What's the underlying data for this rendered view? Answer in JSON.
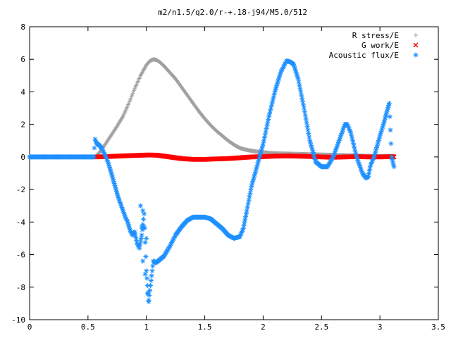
{
  "chart_data": {
    "type": "scatter",
    "title": "m2/n1.5/q2.0/r-+.18-j94/M5.0/512",
    "xlabel": "",
    "ylabel": "",
    "xlim": [
      0,
      3.5
    ],
    "ylim": [
      -10,
      8
    ],
    "x_ticks": [
      "0",
      "0.5",
      "1",
      "1.5",
      "2",
      "2.5",
      "3",
      "3.5"
    ],
    "y_ticks": [
      "-10",
      "-8",
      "-6",
      "-4",
      "-2",
      "0",
      "2",
      "4",
      "6",
      "8"
    ],
    "grid": false,
    "legend_position": "top-right",
    "series": [
      {
        "name": "R stress/E",
        "marker": "+",
        "color": "#a0a0a0",
        "x": [
          0.57,
          0.6,
          0.65,
          0.7,
          0.75,
          0.8,
          0.85,
          0.9,
          0.95,
          1.0,
          1.03,
          1.06,
          1.09,
          1.12,
          1.15,
          1.2,
          1.25,
          1.3,
          1.35,
          1.4,
          1.45,
          1.5,
          1.55,
          1.6,
          1.65,
          1.7,
          1.75,
          1.8,
          1.85,
          1.9,
          1.95,
          2.0,
          2.05,
          2.1,
          2.2,
          2.3,
          2.4,
          2.5,
          2.6,
          2.7,
          2.8,
          2.9,
          3.0,
          3.05,
          3.1,
          3.12
        ],
        "y": [
          0.05,
          0.3,
          0.8,
          1.35,
          1.9,
          2.5,
          3.3,
          4.2,
          5.0,
          5.65,
          5.9,
          6.0,
          5.95,
          5.8,
          5.6,
          5.2,
          4.8,
          4.3,
          3.8,
          3.3,
          2.8,
          2.35,
          1.95,
          1.6,
          1.3,
          1.0,
          0.75,
          0.55,
          0.45,
          0.38,
          0.32,
          0.28,
          0.25,
          0.22,
          0.2,
          0.18,
          0.16,
          0.14,
          0.12,
          0.1,
          0.08,
          0.06,
          0.05,
          0.05,
          0.05,
          0.05
        ]
      },
      {
        "name": "G work/E",
        "marker": "x",
        "color": "#ff0000",
        "x": [
          0.57,
          0.65,
          0.75,
          0.85,
          0.95,
          1.0,
          1.05,
          1.1,
          1.2,
          1.3,
          1.4,
          1.5,
          1.6,
          1.7,
          1.8,
          1.9,
          2.0,
          2.1,
          2.2,
          2.3,
          2.4,
          2.5,
          2.6,
          2.7,
          2.8,
          2.9,
          3.0,
          3.1,
          3.12
        ],
        "y": [
          0.0,
          0.02,
          0.05,
          0.08,
          0.1,
          0.12,
          0.12,
          0.1,
          0.0,
          -0.1,
          -0.15,
          -0.15,
          -0.12,
          -0.1,
          -0.05,
          0.0,
          0.02,
          0.05,
          0.06,
          0.05,
          0.03,
          0.0,
          -0.02,
          0.0,
          0.02,
          0.0,
          0.0,
          0.02,
          0.0
        ]
      },
      {
        "name": "Acoustic flux/E",
        "marker": "*",
        "color": "#1e90ff",
        "x": [
          0.0,
          0.1,
          0.2,
          0.3,
          0.4,
          0.5,
          0.55,
          0.56,
          0.57,
          0.58,
          0.6,
          0.62,
          0.64,
          0.66,
          0.68,
          0.7,
          0.72,
          0.74,
          0.76,
          0.78,
          0.8,
          0.82,
          0.84,
          0.86,
          0.88,
          0.9,
          0.92,
          0.94,
          0.96,
          0.98,
          1.0,
          1.02,
          1.04,
          1.06,
          1.08,
          1.1,
          1.15,
          1.2,
          1.25,
          1.3,
          1.35,
          1.4,
          1.45,
          1.5,
          1.55,
          1.6,
          1.65,
          1.7,
          1.75,
          1.8,
          1.83,
          1.86,
          1.9,
          1.95,
          2.0,
          2.05,
          2.1,
          2.15,
          2.2,
          2.23,
          2.26,
          2.3,
          2.35,
          2.4,
          2.45,
          2.5,
          2.55,
          2.6,
          2.65,
          2.7,
          2.72,
          2.75,
          2.8,
          2.85,
          2.88,
          2.9,
          2.92,
          2.95,
          3.0,
          3.03,
          3.06,
          3.08,
          3.1,
          3.12
        ],
        "y": [
          0.0,
          0.0,
          0.0,
          0.0,
          0.0,
          0.0,
          0.0,
          1.1,
          0.9,
          0.8,
          0.7,
          0.5,
          0.2,
          -0.1,
          -0.5,
          -1.0,
          -1.5,
          -2.0,
          -2.5,
          -2.9,
          -3.3,
          -3.7,
          -4.0,
          -4.5,
          -4.8,
          -4.6,
          -5.3,
          -5.6,
          -4.8,
          -3.5,
          -7.0,
          -8.8,
          -7.6,
          -6.4,
          -6.5,
          -6.4,
          -6.1,
          -5.5,
          -4.8,
          -4.3,
          -3.9,
          -3.7,
          -3.7,
          -3.7,
          -3.8,
          -4.1,
          -4.4,
          -4.8,
          -5.0,
          -4.9,
          -4.4,
          -3.3,
          -1.8,
          -0.5,
          0.8,
          2.5,
          4.0,
          5.2,
          5.9,
          5.85,
          5.7,
          4.8,
          3.0,
          1.0,
          -0.3,
          -0.6,
          -0.6,
          0.0,
          1.0,
          2.0,
          2.0,
          1.5,
          0.0,
          -1.0,
          -1.3,
          -1.2,
          -0.5,
          0.0,
          1.3,
          2.0,
          2.8,
          3.3,
          0.0,
          -0.6
        ]
      }
    ],
    "scatter_outliers": {
      "x": [
        0.95,
        0.97,
        0.98,
        1.0,
        1.01,
        1.02,
        0.97,
        0.99,
        0.96
      ],
      "y": [
        -3.0,
        -3.3,
        -4.3,
        -5.0,
        -8.4,
        -8.9,
        -6.4,
        -7.2,
        -4.3
      ]
    }
  }
}
